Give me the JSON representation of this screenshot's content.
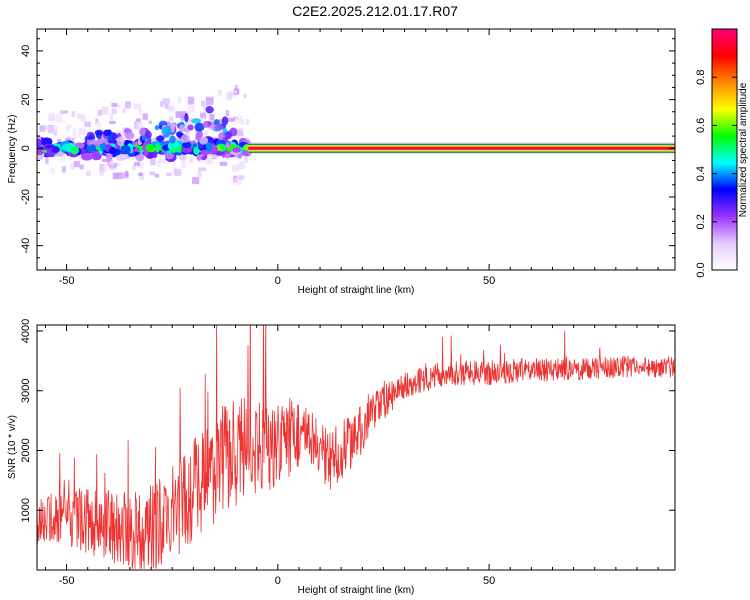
{
  "title": "C2E2.2025.212.01.17.R07",
  "chart_data": [
    {
      "type": "heatmap",
      "xlabel": "Height of straight line (km)",
      "ylabel": "Frequency (Hz)",
      "xlim": [
        -57,
        94
      ],
      "ylim": [
        -50,
        49
      ],
      "xticks": [
        -50,
        0,
        50
      ],
      "yticks": [
        -40,
        -20,
        0,
        20,
        40
      ],
      "colorbar": {
        "label": "Normalized spectral amplitude",
        "range": [
          0,
          1
        ],
        "ticks": [
          "0.0",
          "0.2",
          "0.4",
          "0.6",
          "0.8"
        ],
        "tick_values": [
          0.0,
          0.2,
          0.4,
          0.6,
          0.8
        ],
        "colors": [
          "#ffffff",
          "#e6ccff",
          "#9933ff",
          "#0000ff",
          "#00ffff",
          "#00ff00",
          "#ffff00",
          "#ff8800",
          "#ff0000",
          "#ff0077"
        ]
      },
      "carrier": {
        "frequency": 0,
        "x_start": -7,
        "x_end": 94,
        "amplitude": 0.95
      },
      "noisy_region": {
        "x_start": -57,
        "x_end": -7,
        "frequency_spread": 10,
        "peak_amplitude": 0.55
      }
    },
    {
      "type": "line",
      "xlabel": "Height of straight line (km)",
      "ylabel": "SNR (10 * v/v)",
      "xlim": [
        -57,
        94
      ],
      "ylim": [
        0,
        4100
      ],
      "xticks": [
        -50,
        0,
        50
      ],
      "yticks": [
        1000,
        2000,
        3000,
        4000
      ],
      "color": "#ee3333",
      "trend_x": [
        -57,
        -50,
        -40,
        -32,
        -25,
        -18,
        -12,
        -7,
        -2,
        5,
        12,
        18,
        25,
        30,
        35,
        40,
        50,
        60,
        70,
        80,
        94
      ],
      "trend_y": [
        800,
        900,
        750,
        600,
        900,
        1500,
        1900,
        2100,
        2000,
        2300,
        1800,
        2200,
        2800,
        3100,
        3200,
        3300,
        3300,
        3350,
        3350,
        3400,
        3400
      ],
      "noise_x": [
        -57,
        -20,
        -10,
        0,
        15,
        30,
        94
      ],
      "noise_y": [
        380,
        900,
        950,
        700,
        500,
        220,
        180
      ]
    }
  ]
}
